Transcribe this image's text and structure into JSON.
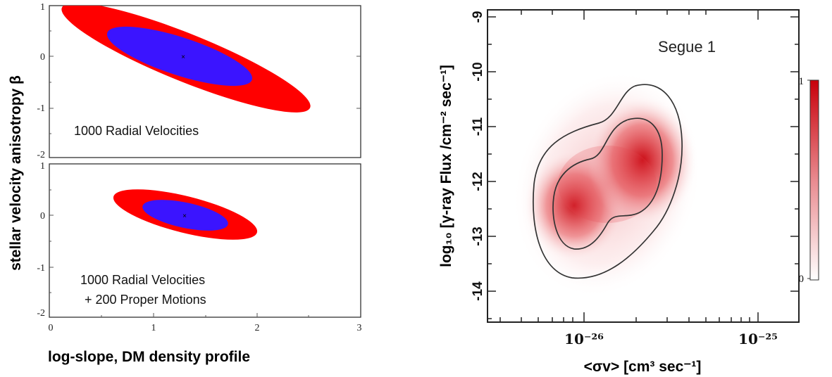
{
  "chart_data": [
    {
      "type": "scatter",
      "panel": "top-left",
      "ylim": [
        -2,
        1
      ],
      "xlim": [
        0,
        3
      ],
      "annotation": "1000 Radial Velocities",
      "yticks": [
        "1",
        "0",
        "-1",
        "-2"
      ],
      "best_fit": {
        "x": 1.3,
        "y": 0.0
      },
      "confidence_regions": [
        {
          "level": "outer",
          "color": "#ff0000",
          "x_range": [
            0.1,
            2.5
          ],
          "y_range": [
            -0.9,
            0.95
          ]
        },
        {
          "level": "inner",
          "color": "#3b14ff",
          "x_range": [
            0.6,
            2.05
          ],
          "y_range": [
            -0.6,
            0.6
          ]
        }
      ]
    },
    {
      "type": "scatter",
      "panel": "bottom-left",
      "ylim": [
        -2,
        1
      ],
      "xlim": [
        0,
        3
      ],
      "annotation_lines": [
        "1000 Radial Velocities",
        "+ 200 Proper Motions"
      ],
      "yticks": [
        "1",
        "0",
        "-1",
        "-2"
      ],
      "xticks": [
        "0",
        "1",
        "2",
        "3"
      ],
      "xlabel": "log-slope, DM density profile",
      "shared_ylabel": "stellar velocity anisotropy   β",
      "best_fit": {
        "x": 1.3,
        "y": 0.0
      },
      "confidence_regions": [
        {
          "level": "outer",
          "color": "#ff0000",
          "x_range": [
            0.6,
            2.0
          ],
          "y_range": [
            -0.35,
            0.4
          ]
        },
        {
          "level": "inner",
          "color": "#3b14ff",
          "x_range": [
            0.9,
            1.7
          ],
          "y_range": [
            -0.2,
            0.2
          ]
        }
      ]
    },
    {
      "type": "heatmap",
      "panel": "right",
      "title": "Segue 1",
      "xlabel": "<σv> [cm³ sec⁻¹]",
      "ylabel": "log₁₀ [γ-ray Flux /cm⁻² sec⁻¹]",
      "xscale": "log",
      "xlim": [
        2.5e-27,
        2e-25
      ],
      "xticks": [
        "10⁻²⁶",
        "10⁻²⁵"
      ],
      "ylim": [
        -14.6,
        -8.9
      ],
      "yticks": [
        "-9",
        "-10",
        "-11",
        "-12",
        "-13",
        "-14"
      ],
      "colorbar": {
        "min": "0",
        "max": "1",
        "colors": [
          "#ffffff",
          "#c8000a"
        ]
      },
      "peaks": [
        {
          "sigma_v": 9e-27,
          "log_flux": -12.5,
          "intensity": 0.85
        },
        {
          "sigma_v": 2.2e-26,
          "log_flux": -11.7,
          "intensity": 0.95
        }
      ]
    }
  ]
}
